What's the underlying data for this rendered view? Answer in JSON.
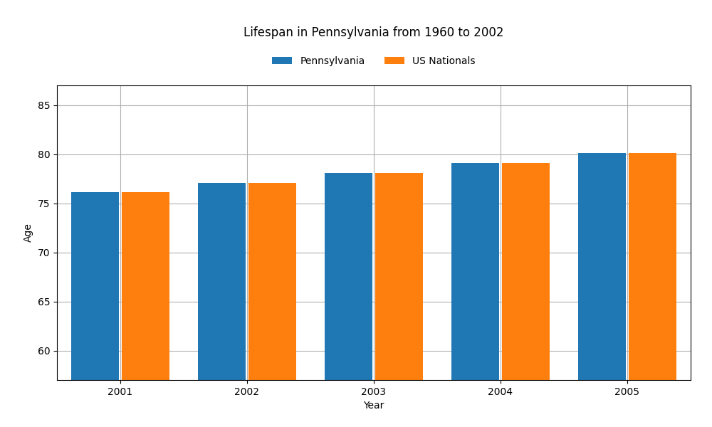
{
  "chart_data": {
    "type": "bar",
    "title": "Lifespan in Pennsylvania from 1960 to 2002",
    "x_label": "Year",
    "y_label": "Age",
    "categories": [
      "2001",
      "2002",
      "2003",
      "2004",
      "2005"
    ],
    "series": [
      {
        "name": "Pennsylvania",
        "values": [
          76.1,
          77.1,
          78.1,
          79.1,
          80.1
        ]
      },
      {
        "name": "US Nationals",
        "values": [
          76.1,
          77.1,
          78.1,
          79.1,
          80.1
        ]
      }
    ],
    "ylim": [
      57,
      87
    ],
    "yticks": [
      60,
      65,
      70,
      75,
      80,
      85
    ],
    "grid": true,
    "legend": "upper center"
  }
}
